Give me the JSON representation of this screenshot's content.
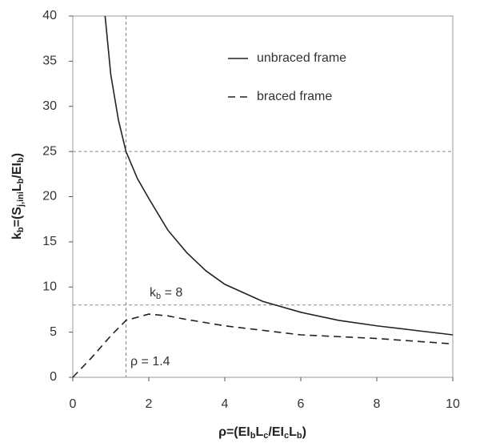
{
  "chart_data": {
    "type": "line",
    "x_label": [
      "ρ=(EI",
      "b",
      "L",
      "c",
      "/EI",
      "c",
      "L",
      "b",
      ")"
    ],
    "y_label": [
      "k",
      "b",
      "=(S",
      "j,ini",
      "L",
      "b",
      "/EI",
      "b",
      ")"
    ],
    "series": [
      {
        "name": "unbraced frame",
        "color": "#222222",
        "dash": "solid",
        "x": [
          0.85,
          1,
          1.2,
          1.4,
          1.7,
          2,
          2.5,
          3,
          3.5,
          4,
          5,
          6,
          7,
          8,
          9,
          10
        ],
        "values": [
          40,
          33.5,
          28.5,
          25,
          22,
          19.8,
          16.3,
          13.8,
          11.8,
          10.3,
          8.4,
          7.2,
          6.3,
          5.7,
          5.2,
          4.7
        ]
      },
      {
        "name": "braced frame",
        "color": "#222222",
        "dash": "dashed",
        "x": [
          0,
          0.5,
          1,
          1.4,
          2,
          2.5,
          3,
          4,
          5,
          6,
          7,
          8,
          9,
          10
        ],
        "values": [
          0,
          2.2,
          4.6,
          6.3,
          7,
          6.8,
          6.4,
          5.7,
          5.2,
          4.7,
          4.5,
          4.3,
          4,
          3.7
        ]
      }
    ],
    "hlines": [
      25,
      8
    ],
    "vlines": [
      1.4
    ],
    "annotations": [
      [
        "k",
        "b",
        " = 8"
      ],
      [
        "ρ = 1.4"
      ]
    ],
    "xlim": [
      0,
      10
    ],
    "xticks": [
      0,
      2,
      4,
      6,
      8,
      10
    ],
    "ylim": [
      0,
      40
    ],
    "yticks": [
      0,
      5,
      10,
      15,
      20,
      25,
      30,
      35,
      40
    ]
  }
}
